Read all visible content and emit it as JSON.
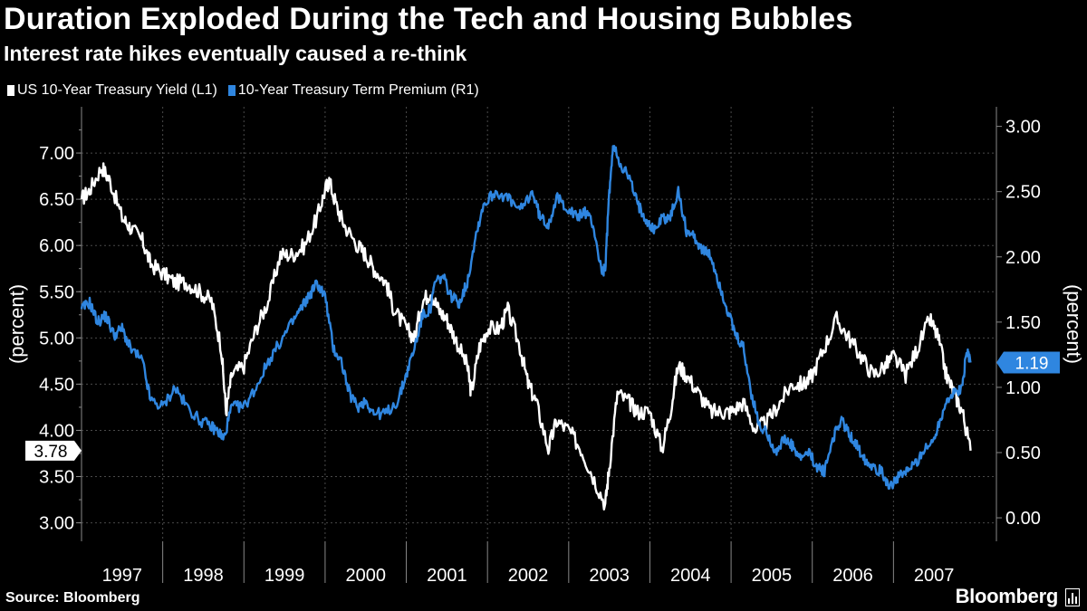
{
  "header": {
    "title": "Duration Exploded During the Tech and Housing Bubbles",
    "subtitle": "Interest rate hikes eventually caused a re-think"
  },
  "legend": [
    {
      "label": "US 10-Year Treasury Yield (L1)",
      "color": "#ffffff"
    },
    {
      "label": "10-Year Treasury Term Premium (R1)",
      "color": "#2f86e0"
    }
  ],
  "footer": {
    "source": "Source: Bloomberg",
    "brand": "Bloomberg"
  },
  "chart_data": {
    "type": "line",
    "ylabel_left": "(percent)",
    "ylabel_right": "(percent)",
    "ylim_left": [
      2.8,
      7.5
    ],
    "ylim_right": [
      -0.18,
      3.15
    ],
    "left_ticks": [
      "3.00",
      "3.50",
      "4.00",
      "4.50",
      "5.00",
      "5.50",
      "6.00",
      "6.50",
      "7.00"
    ],
    "right_ticks": [
      "0.00",
      "0.50",
      "1.00",
      "1.50",
      "2.00",
      "2.50",
      "3.00"
    ],
    "x_categories": [
      "1997",
      "1998",
      "1999",
      "2000",
      "2001",
      "2002",
      "2003",
      "2004",
      "2005",
      "2006",
      "2007"
    ],
    "grid": true,
    "legend_position": "top-left",
    "last_value_labels": {
      "left": "3.78",
      "right": "1.19"
    },
    "series": [
      {
        "name": "US 10-Year Treasury Yield (L1)",
        "axis": "left",
        "color": "#ffffff",
        "x": [
          1997.0,
          1997.1,
          1997.25,
          1997.35,
          1997.5,
          1997.6,
          1997.75,
          1997.85,
          1998.0,
          1998.15,
          1998.3,
          1998.45,
          1998.6,
          1998.72,
          1998.78,
          1998.85,
          1999.0,
          1999.15,
          1999.3,
          1999.45,
          1999.6,
          1999.75,
          1999.9,
          2000.0,
          2000.05,
          2000.15,
          2000.25,
          2000.4,
          2000.5,
          2000.6,
          2000.75,
          2000.85,
          2001.0,
          2001.1,
          2001.2,
          2001.3,
          2001.4,
          2001.5,
          2001.6,
          2001.75,
          2001.8,
          2001.9,
          2002.0,
          2002.15,
          2002.25,
          2002.4,
          2002.5,
          2002.6,
          2002.75,
          2002.85,
          2003.0,
          2003.15,
          2003.3,
          2003.45,
          2003.5,
          2003.6,
          2003.75,
          2003.85,
          2004.0,
          2004.15,
          2004.25,
          2004.35,
          2004.45,
          2004.6,
          2004.75,
          2004.9,
          2005.0,
          2005.15,
          2005.3,
          2005.45,
          2005.6,
          2005.75,
          2005.9,
          2006.0,
          2006.15,
          2006.3,
          2006.45,
          2006.6,
          2006.75,
          2006.9,
          2007.0,
          2007.15,
          2007.3,
          2007.45,
          2007.55,
          2007.65,
          2007.75,
          2007.85,
          2007.95
        ],
        "y": [
          6.5,
          6.6,
          6.85,
          6.7,
          6.3,
          6.2,
          6.05,
          5.8,
          5.7,
          5.6,
          5.6,
          5.5,
          5.4,
          4.9,
          4.2,
          4.6,
          4.7,
          5.1,
          5.4,
          5.9,
          5.9,
          6.0,
          6.3,
          6.6,
          6.7,
          6.4,
          6.2,
          6.0,
          5.9,
          5.75,
          5.6,
          5.3,
          5.1,
          5.0,
          5.4,
          5.5,
          5.3,
          5.2,
          5.0,
          4.7,
          4.4,
          4.9,
          5.1,
          5.1,
          5.3,
          4.9,
          4.5,
          4.3,
          3.8,
          4.1,
          4.0,
          3.8,
          3.5,
          3.2,
          3.6,
          4.4,
          4.3,
          4.2,
          4.2,
          3.8,
          4.2,
          4.7,
          4.6,
          4.4,
          4.2,
          4.2,
          4.2,
          4.3,
          4.0,
          4.1,
          4.3,
          4.5,
          4.5,
          4.6,
          4.9,
          5.2,
          5.0,
          4.8,
          4.6,
          4.7,
          4.8,
          4.6,
          4.9,
          5.2,
          5.0,
          4.6,
          4.4,
          4.2,
          3.78
        ]
      },
      {
        "name": "10-Year Treasury Term Premium (R1)",
        "axis": "right",
        "color": "#2f86e0",
        "x": [
          1997.0,
          1997.1,
          1997.2,
          1997.3,
          1997.4,
          1997.5,
          1997.6,
          1997.75,
          1997.85,
          1998.0,
          1998.15,
          1998.3,
          1998.45,
          1998.6,
          1998.7,
          1998.75,
          1998.85,
          1999.0,
          1999.15,
          1999.3,
          1999.45,
          1999.6,
          1999.7,
          1999.8,
          1999.9,
          2000.0,
          2000.1,
          2000.2,
          2000.3,
          2000.4,
          2000.5,
          2000.6,
          2000.75,
          2000.9,
          2001.0,
          2001.1,
          2001.2,
          2001.3,
          2001.35,
          2001.45,
          2001.55,
          2001.65,
          2001.75,
          2001.85,
          2001.95,
          2002.1,
          2002.25,
          2002.4,
          2002.55,
          2002.65,
          2002.75,
          2002.85,
          2002.95,
          2003.1,
          2003.2,
          2003.3,
          2003.4,
          2003.45,
          2003.5,
          2003.55,
          2003.65,
          2003.75,
          2003.85,
          2003.95,
          2004.05,
          2004.15,
          2004.25,
          2004.35,
          2004.45,
          2004.55,
          2004.65,
          2004.75,
          2004.85,
          2004.95,
          2005.05,
          2005.15,
          2005.25,
          2005.35,
          2005.45,
          2005.55,
          2005.65,
          2005.75,
          2005.85,
          2005.95,
          2006.05,
          2006.15,
          2006.25,
          2006.35,
          2006.45,
          2006.55,
          2006.65,
          2006.75,
          2006.85,
          2006.95,
          2007.05,
          2007.15,
          2007.25,
          2007.35,
          2007.45,
          2007.55,
          2007.65,
          2007.75,
          2007.85,
          2007.9,
          2007.95
        ],
        "y": [
          1.6,
          1.65,
          1.5,
          1.55,
          1.4,
          1.45,
          1.3,
          1.2,
          0.9,
          0.85,
          1.0,
          0.85,
          0.75,
          0.7,
          0.65,
          0.6,
          0.85,
          0.85,
          1.0,
          1.2,
          1.35,
          1.5,
          1.6,
          1.7,
          1.8,
          1.7,
          1.3,
          1.2,
          0.95,
          0.85,
          0.9,
          0.8,
          0.8,
          0.9,
          1.1,
          1.3,
          1.55,
          1.6,
          1.8,
          1.85,
          1.7,
          1.65,
          1.8,
          2.15,
          2.4,
          2.5,
          2.45,
          2.35,
          2.5,
          2.3,
          2.25,
          2.45,
          2.4,
          2.3,
          2.35,
          2.25,
          1.9,
          1.9,
          2.5,
          2.85,
          2.7,
          2.6,
          2.4,
          2.3,
          2.2,
          2.3,
          2.3,
          2.5,
          2.2,
          2.15,
          2.05,
          2.0,
          1.8,
          1.6,
          1.4,
          1.3,
          0.95,
          0.7,
          0.65,
          0.5,
          0.6,
          0.55,
          0.45,
          0.5,
          0.4,
          0.35,
          0.6,
          0.75,
          0.65,
          0.55,
          0.45,
          0.4,
          0.35,
          0.25,
          0.3,
          0.35,
          0.4,
          0.5,
          0.55,
          0.7,
          0.9,
          0.95,
          1.0,
          1.3,
          1.19
        ]
      }
    ]
  }
}
